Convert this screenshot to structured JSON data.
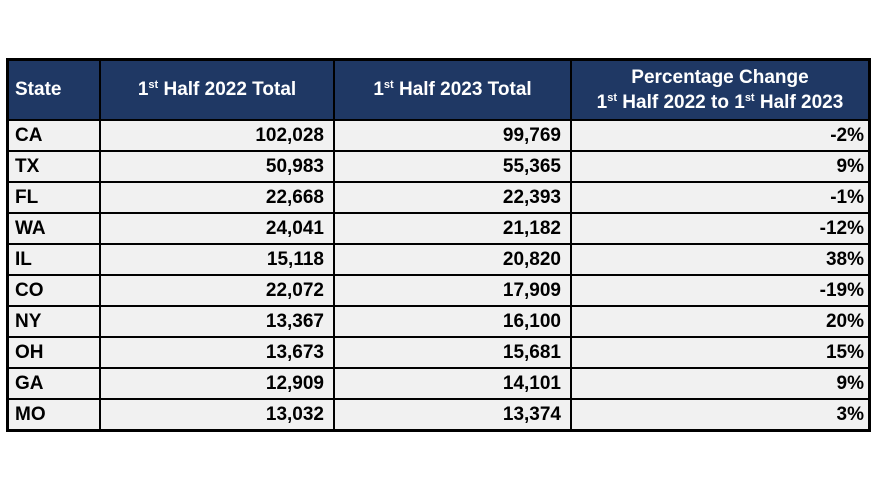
{
  "colors": {
    "page_bg": "#FFFFFF",
    "header_bg": "#1F3864",
    "header_text": "#FFFFFF",
    "row_bg": "#F1F1F1",
    "grid": "#000000",
    "body_text": "#000000"
  },
  "header": {
    "state": "State",
    "col2022": {
      "base": "1",
      "sup": "st",
      "rest": " Half 2022 Total"
    },
    "col2023": {
      "base": "1",
      "sup": "st",
      "rest": " Half 2023 Total"
    },
    "pct": {
      "line1": "Percentage Change",
      "line2": {
        "a": "1",
        "a_sup": "st",
        "b": " Half 2022 to 1",
        "b_sup": "st",
        "c": " Half 2023"
      }
    }
  },
  "rows": [
    {
      "state": "CA",
      "h2022": "102,028",
      "h2023": "99,769",
      "pct": "-2%"
    },
    {
      "state": "TX",
      "h2022": "50,983",
      "h2023": "55,365",
      "pct": "9%"
    },
    {
      "state": "FL",
      "h2022": "22,668",
      "h2023": "22,393",
      "pct": "-1%"
    },
    {
      "state": "WA",
      "h2022": "24,041",
      "h2023": "21,182",
      "pct": "-12%"
    },
    {
      "state": "IL",
      "h2022": "15,118",
      "h2023": "20,820",
      "pct": "38%"
    },
    {
      "state": "CO",
      "h2022": "22,072",
      "h2023": "17,909",
      "pct": "-19%"
    },
    {
      "state": "NY",
      "h2022": "13,367",
      "h2023": "16,100",
      "pct": "20%"
    },
    {
      "state": "OH",
      "h2022": "13,673",
      "h2023": "15,681",
      "pct": "15%"
    },
    {
      "state": "GA",
      "h2022": "12,909",
      "h2023": "14,101",
      "pct": "9%"
    },
    {
      "state": "MO",
      "h2022": "13,032",
      "h2023": "13,374",
      "pct": "3%"
    }
  ],
  "chart_data": {
    "type": "table",
    "columns": [
      "State",
      "1st Half 2022 Total",
      "1st Half 2023 Total",
      "Percentage Change 1st Half 2022 to 1st Half 2023"
    ],
    "rows": [
      [
        "CA",
        102028,
        99769,
        "-2%"
      ],
      [
        "TX",
        50983,
        55365,
        "9%"
      ],
      [
        "FL",
        22668,
        22393,
        "-1%"
      ],
      [
        "WA",
        24041,
        21182,
        "-12%"
      ],
      [
        "IL",
        15118,
        20820,
        "38%"
      ],
      [
        "CO",
        22072,
        17909,
        "-19%"
      ],
      [
        "NY",
        13367,
        16100,
        "20%"
      ],
      [
        "OH",
        13673,
        15681,
        "15%"
      ],
      [
        "GA",
        12909,
        14101,
        "9%"
      ],
      [
        "MO",
        13032,
        13374,
        "3%"
      ]
    ]
  }
}
